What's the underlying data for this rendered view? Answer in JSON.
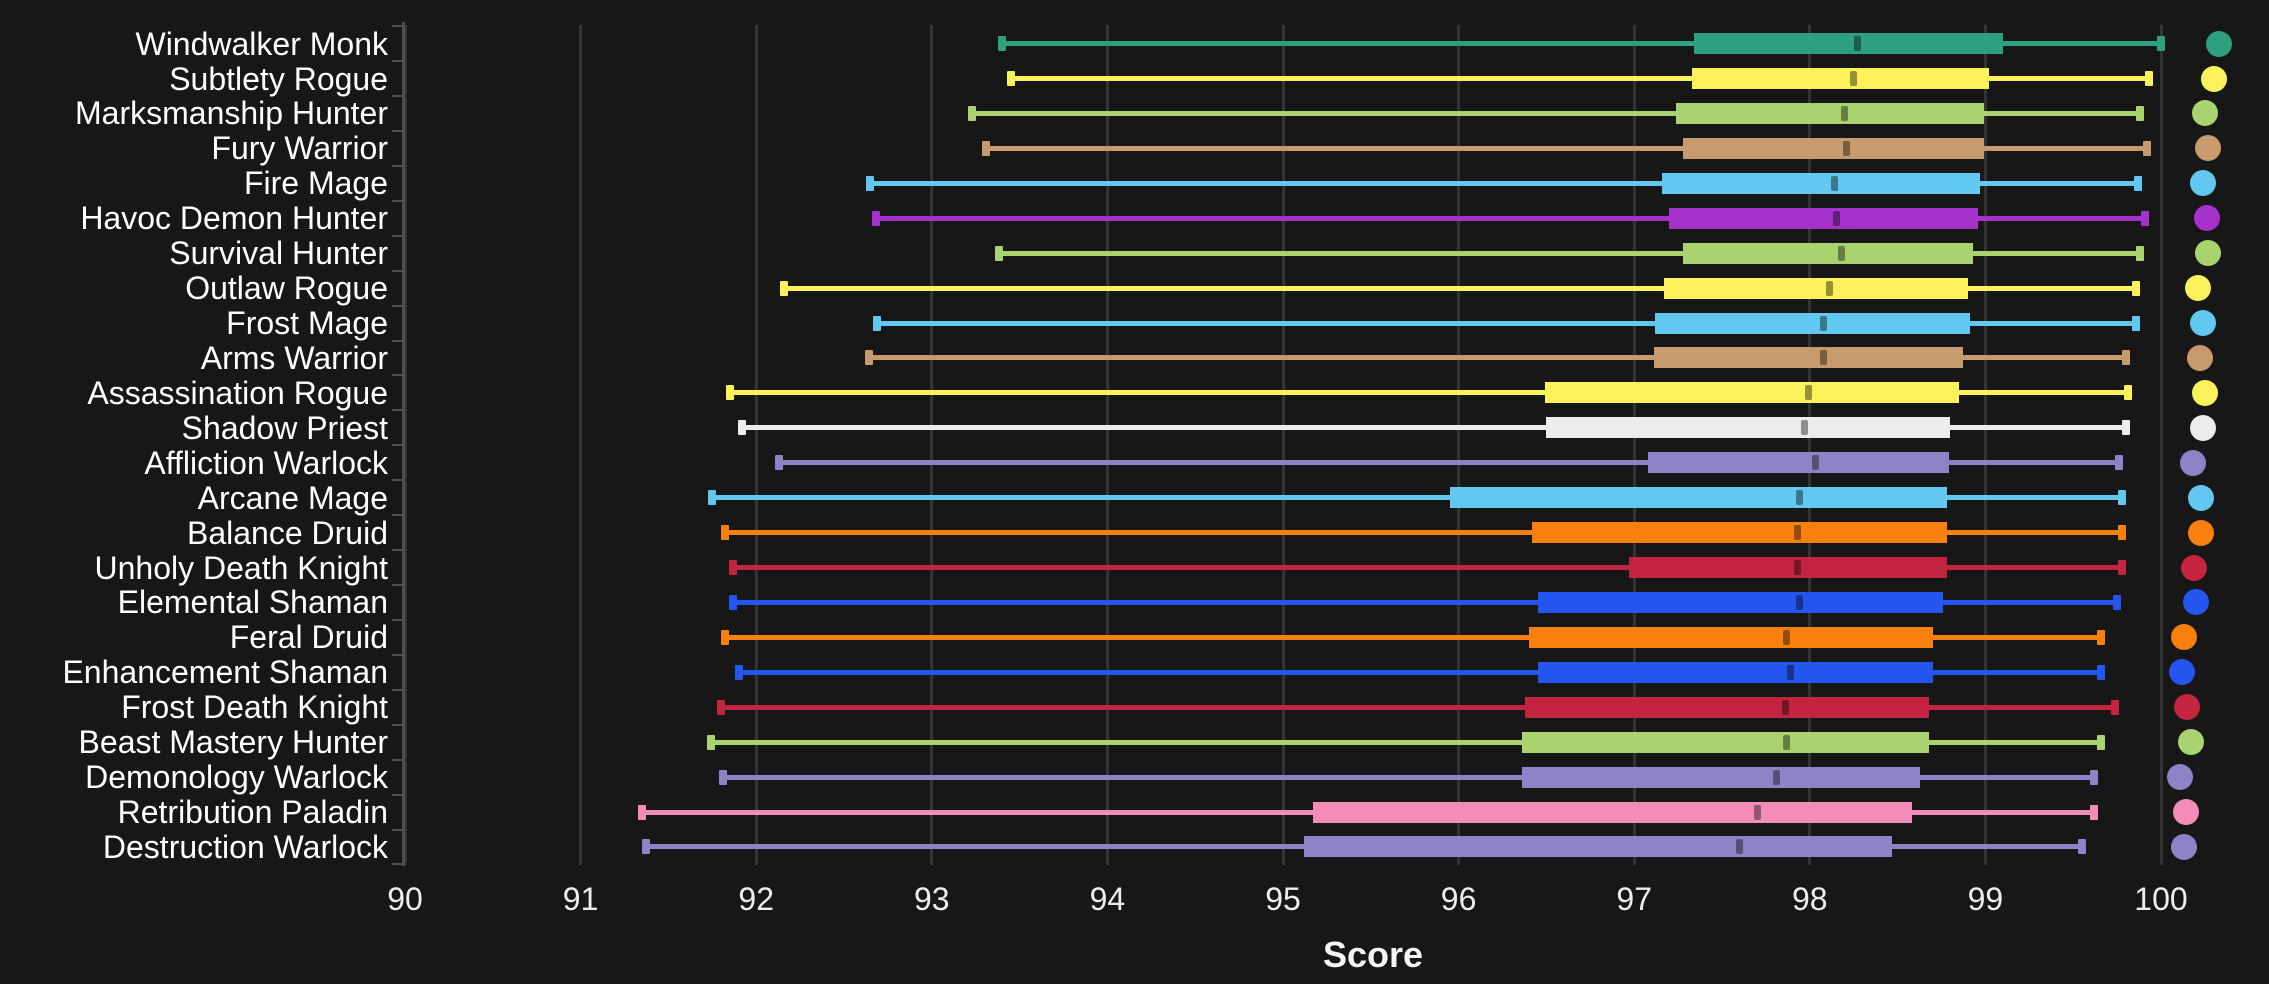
{
  "chart_data": {
    "type": "boxplot-horizontal",
    "title": "",
    "xlabel": "Score",
    "x_base": 90,
    "xlim": [
      90,
      100.6
    ],
    "x_ticks": [
      90,
      91,
      92,
      93,
      94,
      95,
      96,
      97,
      98,
      99,
      100
    ],
    "grid": "vertical",
    "background": "#171717",
    "gridline_color": "#343434",
    "axis_color": "#4f4f4f",
    "text_color": "#ffffff",
    "legend": "class-colored dot at right end of each row",
    "rows": [
      {
        "label": "Windwalker Monk",
        "color": "#2DA07E",
        "low": 93.4,
        "q1": 97.34,
        "median": 98.27,
        "q3": 99.1,
        "high": 100.0,
        "dot": 100.33
      },
      {
        "label": "Subtlety Rogue",
        "color": "#FBF15A",
        "low": 93.45,
        "q1": 97.33,
        "median": 98.25,
        "q3": 99.02,
        "high": 99.93,
        "dot": 100.3
      },
      {
        "label": "Marksmanship Hunter",
        "color": "#A9D36F",
        "low": 93.23,
        "q1": 97.24,
        "median": 98.2,
        "q3": 98.99,
        "high": 99.88,
        "dot": 100.25
      },
      {
        "label": "Fury Warrior",
        "color": "#C79B6D",
        "low": 93.31,
        "q1": 97.28,
        "median": 98.21,
        "q3": 98.99,
        "high": 99.92,
        "dot": 100.27
      },
      {
        "label": "Fire Mage",
        "color": "#62C8F0",
        "low": 92.65,
        "q1": 97.16,
        "median": 98.14,
        "q3": 98.97,
        "high": 99.87,
        "dot": 100.24
      },
      {
        "label": "Havoc Demon Hunter",
        "color": "#A432CB",
        "low": 92.68,
        "q1": 97.2,
        "median": 98.15,
        "q3": 98.96,
        "high": 99.91,
        "dot": 100.26
      },
      {
        "label": "Survival Hunter",
        "color": "#A9D36F",
        "low": 93.38,
        "q1": 97.28,
        "median": 98.18,
        "q3": 98.93,
        "high": 99.88,
        "dot": 100.27
      },
      {
        "label": "Outlaw Rogue",
        "color": "#FBF15A",
        "low": 92.16,
        "q1": 97.17,
        "median": 98.11,
        "q3": 98.9,
        "high": 99.86,
        "dot": 100.21
      },
      {
        "label": "Frost Mage",
        "color": "#62C8F0",
        "low": 92.69,
        "q1": 97.12,
        "median": 98.08,
        "q3": 98.91,
        "high": 99.86,
        "dot": 100.24
      },
      {
        "label": "Arms Warrior",
        "color": "#C79B6D",
        "low": 92.64,
        "q1": 97.11,
        "median": 98.08,
        "q3": 98.87,
        "high": 99.8,
        "dot": 100.22
      },
      {
        "label": "Assassination Rogue",
        "color": "#FBF15A",
        "low": 91.85,
        "q1": 96.49,
        "median": 97.99,
        "q3": 98.85,
        "high": 99.81,
        "dot": 100.25
      },
      {
        "label": "Shadow Priest",
        "color": "#ECECEC",
        "low": 91.92,
        "q1": 96.5,
        "median": 97.97,
        "q3": 98.8,
        "high": 99.8,
        "dot": 100.24
      },
      {
        "label": "Affliction Warlock",
        "color": "#8F83C8",
        "low": 92.13,
        "q1": 97.08,
        "median": 98.03,
        "q3": 98.79,
        "high": 99.76,
        "dot": 100.18
      },
      {
        "label": "Arcane Mage",
        "color": "#62C8F0",
        "low": 91.75,
        "q1": 95.95,
        "median": 97.94,
        "q3": 98.78,
        "high": 99.78,
        "dot": 100.23
      },
      {
        "label": "Balance Druid",
        "color": "#F8800F",
        "low": 91.82,
        "q1": 96.42,
        "median": 97.93,
        "q3": 98.78,
        "high": 99.78,
        "dot": 100.23
      },
      {
        "label": "Unholy Death Knight",
        "color": "#C32440",
        "low": 91.87,
        "q1": 96.97,
        "median": 97.93,
        "q3": 98.78,
        "high": 99.78,
        "dot": 100.19
      },
      {
        "label": "Elemental Shaman",
        "color": "#2456EF",
        "low": 91.87,
        "q1": 96.45,
        "median": 97.94,
        "q3": 98.76,
        "high": 99.75,
        "dot": 100.2
      },
      {
        "label": "Feral Druid",
        "color": "#F8800F",
        "low": 91.82,
        "q1": 96.4,
        "median": 97.87,
        "q3": 98.7,
        "high": 99.66,
        "dot": 100.13
      },
      {
        "label": "Enhancement Shaman",
        "color": "#2456EF",
        "low": 91.9,
        "q1": 96.45,
        "median": 97.89,
        "q3": 98.7,
        "high": 99.66,
        "dot": 100.12
      },
      {
        "label": "Frost Death Knight",
        "color": "#C32440",
        "low": 91.8,
        "q1": 96.38,
        "median": 97.86,
        "q3": 98.68,
        "high": 99.74,
        "dot": 100.15
      },
      {
        "label": "Beast Mastery Hunter",
        "color": "#A9D36F",
        "low": 91.74,
        "q1": 96.36,
        "median": 97.87,
        "q3": 98.68,
        "high": 99.66,
        "dot": 100.17
      },
      {
        "label": "Demonology Warlock",
        "color": "#8F83C8",
        "low": 91.81,
        "q1": 96.36,
        "median": 97.81,
        "q3": 98.63,
        "high": 99.62,
        "dot": 100.11
      },
      {
        "label": "Retribution Paladin",
        "color": "#F48CBA",
        "low": 91.35,
        "q1": 95.17,
        "median": 97.7,
        "q3": 98.58,
        "high": 99.62,
        "dot": 100.14
      },
      {
        "label": "Destruction Warlock",
        "color": "#8F83C8",
        "low": 91.37,
        "q1": 95.12,
        "median": 97.6,
        "q3": 98.47,
        "high": 99.55,
        "dot": 100.13
      }
    ]
  }
}
